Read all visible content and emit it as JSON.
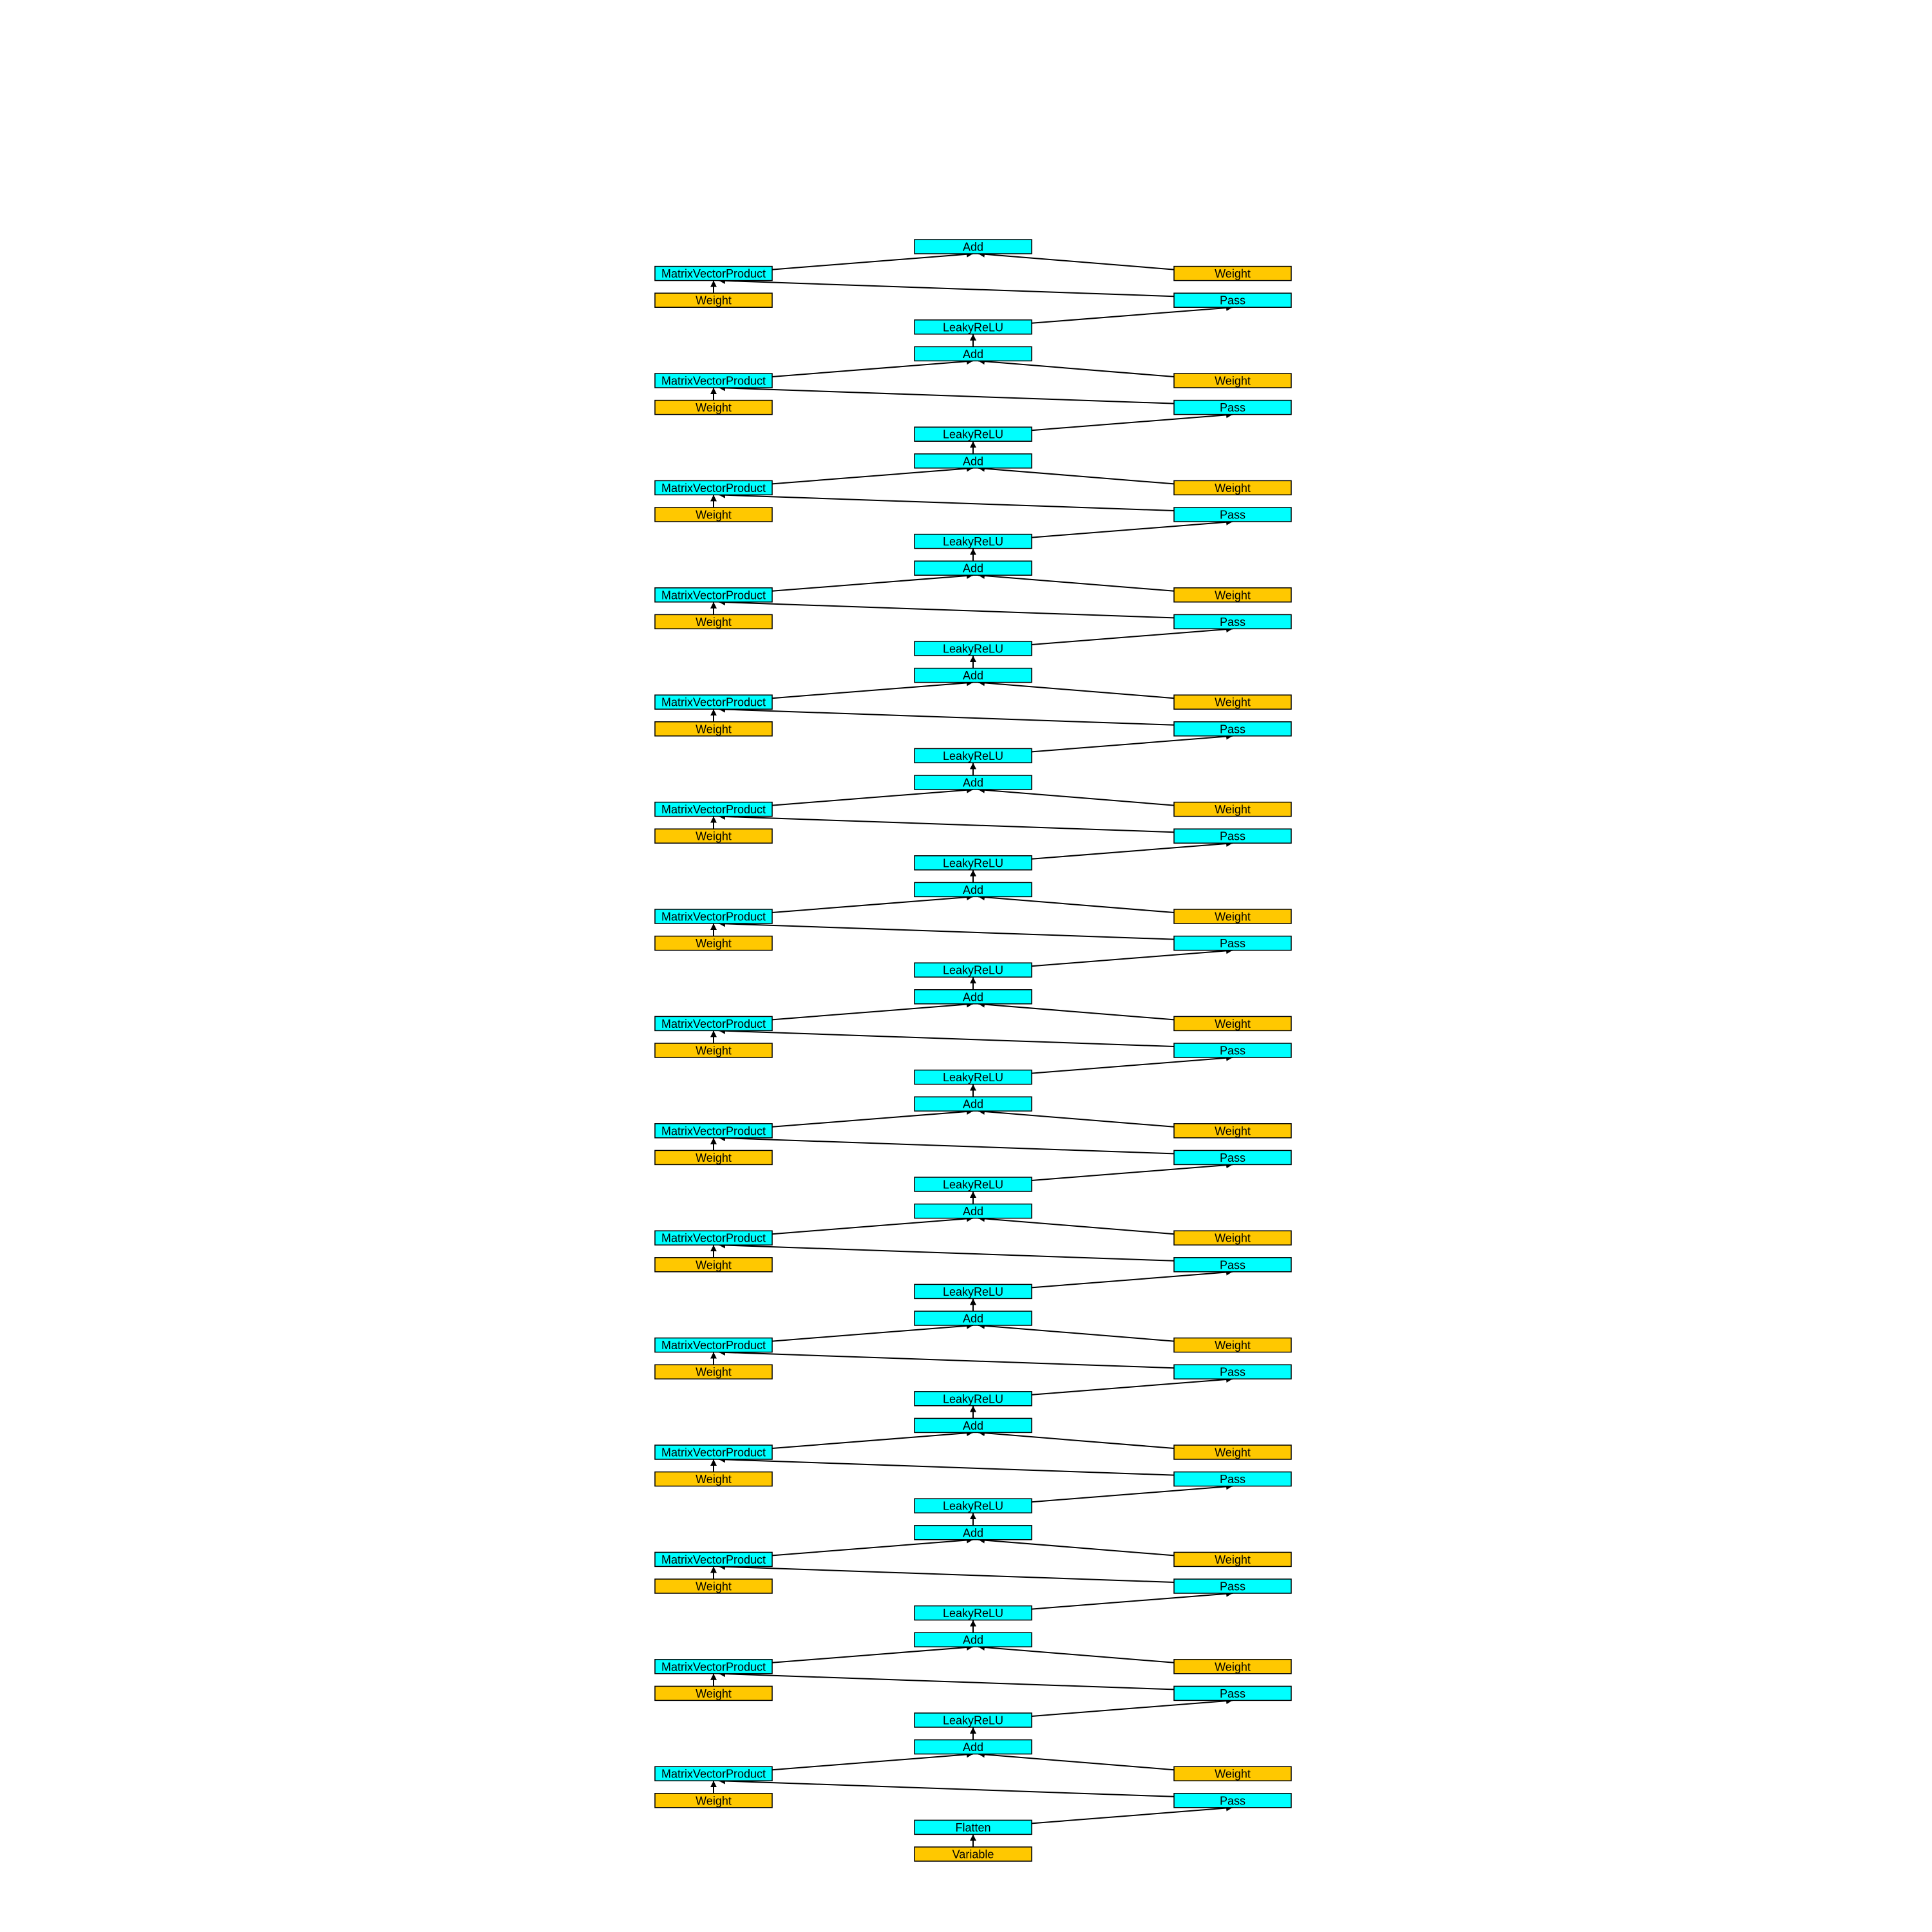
{
  "colors": {
    "op_node": "#00ffff",
    "param_node": "#ffc800",
    "border": "#000000",
    "edge": "#000000"
  },
  "blocks": [
    {
      "mvp": "MatrixVectorProduct",
      "add": "Add",
      "weight_right": "Weight",
      "pass": "Pass",
      "weight_left": "Weight",
      "below": "LeakyReLU"
    },
    {
      "mvp": "MatrixVectorProduct",
      "add": "Add",
      "weight_right": "Weight",
      "pass": "Pass",
      "weight_left": "Weight",
      "below": "LeakyReLU"
    },
    {
      "mvp": "MatrixVectorProduct",
      "add": "Add",
      "weight_right": "Weight",
      "pass": "Pass",
      "weight_left": "Weight",
      "below": "LeakyReLU"
    },
    {
      "mvp": "MatrixVectorProduct",
      "add": "Add",
      "weight_right": "Weight",
      "pass": "Pass",
      "weight_left": "Weight",
      "below": "LeakyReLU"
    },
    {
      "mvp": "MatrixVectorProduct",
      "add": "Add",
      "weight_right": "Weight",
      "pass": "Pass",
      "weight_left": "Weight",
      "below": "LeakyReLU"
    },
    {
      "mvp": "MatrixVectorProduct",
      "add": "Add",
      "weight_right": "Weight",
      "pass": "Pass",
      "weight_left": "Weight",
      "below": "LeakyReLU"
    },
    {
      "mvp": "MatrixVectorProduct",
      "add": "Add",
      "weight_right": "Weight",
      "pass": "Pass",
      "weight_left": "Weight",
      "below": "LeakyReLU"
    },
    {
      "mvp": "MatrixVectorProduct",
      "add": "Add",
      "weight_right": "Weight",
      "pass": "Pass",
      "weight_left": "Weight",
      "below": "LeakyReLU"
    },
    {
      "mvp": "MatrixVectorProduct",
      "add": "Add",
      "weight_right": "Weight",
      "pass": "Pass",
      "weight_left": "Weight",
      "below": "LeakyReLU"
    },
    {
      "mvp": "MatrixVectorProduct",
      "add": "Add",
      "weight_right": "Weight",
      "pass": "Pass",
      "weight_left": "Weight",
      "below": "LeakyReLU"
    },
    {
      "mvp": "MatrixVectorProduct",
      "add": "Add",
      "weight_right": "Weight",
      "pass": "Pass",
      "weight_left": "Weight",
      "below": "LeakyReLU"
    },
    {
      "mvp": "MatrixVectorProduct",
      "add": "Add",
      "weight_right": "Weight",
      "pass": "Pass",
      "weight_left": "Weight",
      "below": "LeakyReLU"
    },
    {
      "mvp": "MatrixVectorProduct",
      "add": "Add",
      "weight_right": "Weight",
      "pass": "Pass",
      "weight_left": "Weight",
      "below": "LeakyReLU"
    },
    {
      "mvp": "MatrixVectorProduct",
      "add": "Add",
      "weight_right": "Weight",
      "pass": "Pass",
      "weight_left": "Weight",
      "below": "LeakyReLU"
    },
    {
      "mvp": "MatrixVectorProduct",
      "add": "Add",
      "weight_right": "Weight",
      "pass": "Pass",
      "weight_left": "Weight",
      "below": "Flatten"
    }
  ],
  "input": "Variable"
}
